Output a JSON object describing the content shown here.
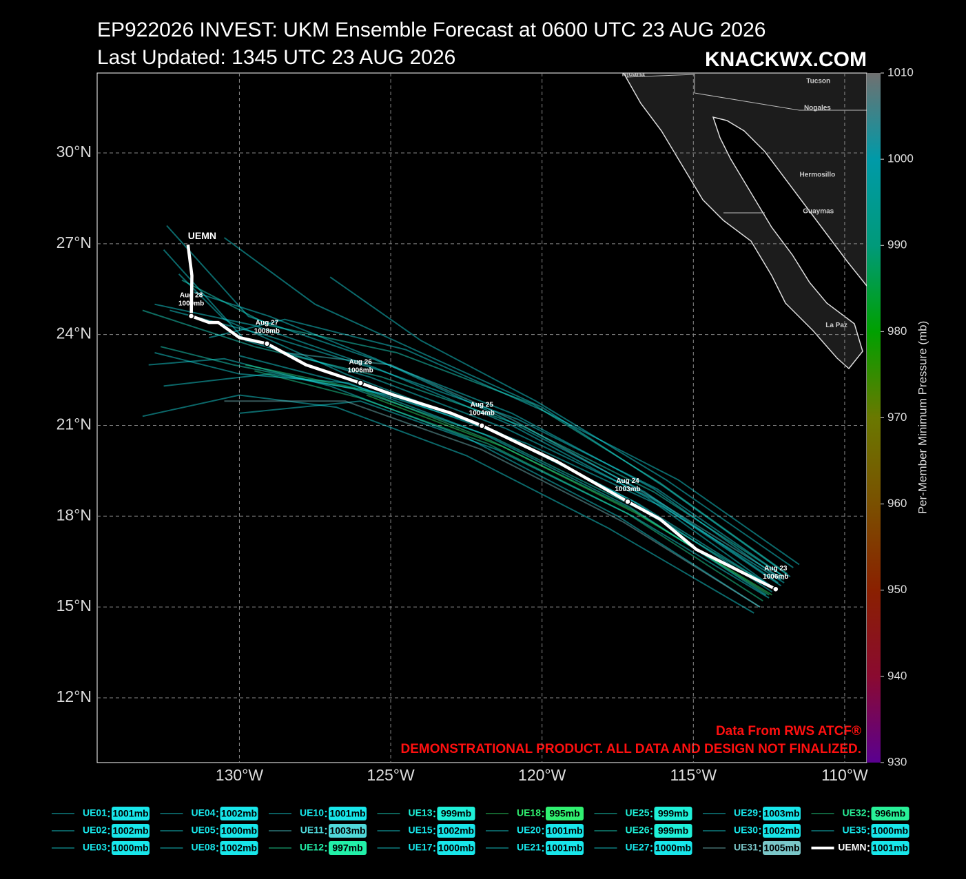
{
  "chart_data": {
    "type": "track-map",
    "title": "EP922026 INVEST: UKM Ensemble Forecast at 0600 UTC 23 AUG 2026",
    "subtitle": "Last Updated: 1345 UTC 23 AUG 2026",
    "brand": "KNACKWX.COM",
    "credit": "Data From RWS ATCF®",
    "disclaimer": "DEMONSTRATIONAL PRODUCT. ALL DATA AND DESIGN NOT FINALIZED.",
    "xlim": [
      -134.7,
      -109.27
    ],
    "ylim": [
      9.86,
      32.64
    ],
    "xticks": [
      {
        "value": -130,
        "label": "130°W"
      },
      {
        "value": -125,
        "label": "125°W"
      },
      {
        "value": -120,
        "label": "120°W"
      },
      {
        "value": -115,
        "label": "115°W"
      },
      {
        "value": -110,
        "label": "110°W"
      }
    ],
    "yticks": [
      {
        "value": 12,
        "label": "12°N"
      },
      {
        "value": 15,
        "label": "15°N"
      },
      {
        "value": 18,
        "label": "18°N"
      },
      {
        "value": 21,
        "label": "21°N"
      },
      {
        "value": 24,
        "label": "24°N"
      },
      {
        "value": 27,
        "label": "27°N"
      },
      {
        "value": 30,
        "label": "30°N"
      }
    ],
    "grid": true,
    "colorbar": {
      "label": "Per-Member Minimum Pressure (mb)",
      "lim": [
        930,
        1010
      ],
      "ticks": [
        930,
        940,
        950,
        960,
        970,
        980,
        990,
        1000,
        1010
      ],
      "cmap": [
        "#5a0090",
        "#8a0a30",
        "#8a2000",
        "#7a5000",
        "#6a7800",
        "#00a000",
        "#009a7a",
        "#009aa8",
        "#707070"
      ]
    },
    "cities": [
      {
        "name": "Tijuana",
        "lon": -117.0,
        "lat": 32.6
      },
      {
        "name": "Tucson",
        "lon": -110.87,
        "lat": 32.37
      },
      {
        "name": "Nogales",
        "lon": -110.9,
        "lat": 31.48
      },
      {
        "name": "Hermosillo",
        "lon": -110.9,
        "lat": 29.27
      },
      {
        "name": "Guaymas",
        "lon": -110.87,
        "lat": 28.07
      },
      {
        "name": "La Paz",
        "lon": -110.27,
        "lat": 24.3
      }
    ],
    "mean_track": {
      "name": "UEMN",
      "color": "#ffffff",
      "min_pressure": 1001,
      "min_pressure_label": "1001mb",
      "lon": [
        -112.28,
        -114.9,
        -116.1,
        -117.17,
        -119.5,
        -121.99,
        -123.0,
        -124.9,
        -126.0,
        -127.8,
        -129.09,
        -130.0,
        -130.7,
        -131.0,
        -131.59,
        -131.57,
        -131.7
      ],
      "lat": [
        15.59,
        16.9,
        17.9,
        18.48,
        19.8,
        20.99,
        21.4,
        22.0,
        22.4,
        23.0,
        23.7,
        23.9,
        24.4,
        24.4,
        24.61,
        25.95,
        26.97
      ],
      "markers": {
        "lon": [
          -112.28,
          -117.17,
          -121.99,
          -126.0,
          -129.09,
          -131.59
        ],
        "lat": [
          15.59,
          18.48,
          20.99,
          22.4,
          23.7,
          24.61
        ],
        "dates": [
          "Aug 23",
          "Aug 24",
          "Aug 25",
          "Aug 26",
          "Aug 27",
          "Aug 28"
        ],
        "pressures": [
          1006,
          1003,
          1004,
          1006,
          1008,
          1009
        ],
        "pressure_labels": [
          "1006mb",
          "1003mb",
          "1004mb",
          "1006mb",
          "1008mb",
          "1009mb"
        ]
      }
    },
    "series": [
      {
        "name": "UE01",
        "min_pressure": 1001,
        "min_pressure_label": "1001mb",
        "color": "#18e6ea",
        "lon": [
          -112.3,
          -116.5,
          -121.0,
          -125.5,
          -129.5,
          -132.8
        ],
        "lat": [
          15.6,
          18.6,
          21.0,
          22.9,
          24.3,
          25.0
        ]
      },
      {
        "name": "UE02",
        "min_pressure": 1002,
        "min_pressure_label": "1002mb",
        "color": "#18e6ea",
        "lon": [
          -112.0,
          -116.0,
          -120.5,
          -125.0,
          -129.0,
          -132.5
        ],
        "lat": [
          15.8,
          18.3,
          20.4,
          22.0,
          22.7,
          22.3
        ]
      },
      {
        "name": "UE03",
        "min_pressure": 1000,
        "min_pressure_label": "1000mb",
        "color": "#18e6ea",
        "lon": [
          -112.5,
          -117.0,
          -121.5,
          -126.0,
          -130.0
        ],
        "lat": [
          15.3,
          18.0,
          20.2,
          21.8,
          21.4
        ]
      },
      {
        "name": "UE04",
        "min_pressure": 1002,
        "min_pressure_label": "1002mb",
        "color": "#18e6ea",
        "lon": [
          -111.8,
          -116.0,
          -120.0,
          -124.0,
          -127.5,
          -130.5
        ],
        "lat": [
          16.0,
          19.0,
          21.6,
          23.4,
          25.0,
          27.2
        ]
      },
      {
        "name": "UE05",
        "min_pressure": 1000,
        "min_pressure_label": "1000mb",
        "color": "#18e6ea",
        "lon": [
          -112.8,
          -117.5,
          -122.5,
          -127.0,
          -130.5,
          -133.0
        ],
        "lat": [
          15.0,
          18.0,
          20.6,
          22.3,
          23.2,
          23.0
        ]
      },
      {
        "name": "UE08",
        "min_pressure": 1002,
        "min_pressure_label": "1002mb",
        "color": "#18e6ea",
        "lon": [
          -112.3,
          -116.8,
          -121.5,
          -126.5,
          -130.5,
          -132.0
        ],
        "lat": [
          15.6,
          18.4,
          20.8,
          22.7,
          24.5,
          26.0
        ]
      },
      {
        "name": "UE10",
        "min_pressure": 1001,
        "min_pressure_label": "1001mb",
        "color": "#18e6ea",
        "lon": [
          -111.5,
          -115.5,
          -120.0,
          -124.5,
          -128.5,
          -131.0
        ],
        "lat": [
          16.4,
          19.2,
          21.5,
          23.5,
          24.5,
          23.9
        ]
      },
      {
        "name": "UE11",
        "min_pressure": 1003,
        "min_pressure_label": "1003mb",
        "color": "#50d8da",
        "lon": [
          -112.0,
          -116.5,
          -121.0,
          -125.0,
          -128.5
        ],
        "lat": [
          15.9,
          18.7,
          21.2,
          23.0,
          23.4
        ]
      },
      {
        "name": "UE12",
        "min_pressure": 997,
        "min_pressure_label": "997mb",
        "color": "#22f0a8",
        "lon": [
          -112.7,
          -117.2,
          -121.8,
          -126.0,
          -129.5
        ],
        "lat": [
          15.2,
          18.1,
          20.4,
          21.9,
          22.8
        ]
      },
      {
        "name": "UE13",
        "min_pressure": 999,
        "min_pressure_label": "999mb",
        "color": "#1ef0d8",
        "lon": [
          -112.0,
          -116.3,
          -120.7,
          -125.3,
          -129.5,
          -133.2
        ],
        "lat": [
          16.0,
          18.8,
          21.0,
          22.6,
          23.6,
          24.8
        ]
      },
      {
        "name": "UE15",
        "min_pressure": 1002,
        "min_pressure_label": "1002mb",
        "color": "#18e6ea",
        "lon": [
          -112.4,
          -117.0,
          -122.0,
          -126.5,
          -130.0
        ],
        "lat": [
          15.5,
          18.5,
          21.0,
          22.4,
          23.3
        ]
      },
      {
        "name": "UE17",
        "min_pressure": 1000,
        "min_pressure_label": "1000mb",
        "color": "#18e6ea",
        "lon": [
          -113.0,
          -117.8,
          -122.5,
          -126.8,
          -130.0,
          -133.2
        ],
        "lat": [
          14.8,
          17.6,
          20.0,
          21.6,
          22.0,
          21.3
        ]
      },
      {
        "name": "UE18",
        "min_pressure": 995,
        "min_pressure_label": "995mb",
        "color": "#30f070",
        "lon": [
          -112.4,
          -116.9,
          -121.3,
          -125.8
        ],
        "lat": [
          15.4,
          18.1,
          20.3,
          22.0
        ]
      },
      {
        "name": "UE20",
        "min_pressure": 1001,
        "min_pressure_label": "1001mb",
        "color": "#18e6ea",
        "lon": [
          -112.1,
          -116.4,
          -121.2,
          -125.7,
          -129.8,
          -132.5
        ],
        "lat": [
          15.7,
          18.6,
          20.9,
          22.6,
          23.8,
          26.8
        ]
      },
      {
        "name": "UE21",
        "min_pressure": 1001,
        "min_pressure_label": "1001mb",
        "color": "#18e6ea",
        "lon": [
          -112.2,
          -116.6,
          -121.4,
          -125.5,
          -129.0,
          -131.5
        ],
        "lat": [
          15.8,
          18.8,
          21.3,
          23.2,
          24.6,
          25.4
        ]
      },
      {
        "name": "UE25",
        "min_pressure": 999,
        "min_pressure_label": "999mb",
        "color": "#1ef0d8",
        "lon": [
          -112.3,
          -116.7,
          -121.6,
          -126.2,
          -130.2,
          -132.6
        ],
        "lat": [
          15.6,
          18.2,
          20.6,
          22.2,
          23.0,
          23.6
        ]
      },
      {
        "name": "UE26",
        "min_pressure": 999,
        "min_pressure_label": "999mb",
        "color": "#1ef0d8",
        "lon": [
          -111.9,
          -116.1,
          -120.3,
          -124.8,
          -129.0,
          -131.9
        ],
        "lat": [
          16.1,
          19.1,
          21.7,
          23.4,
          24.3,
          25.8
        ]
      },
      {
        "name": "UE27",
        "min_pressure": 1000,
        "min_pressure_label": "1000mb",
        "color": "#18e6ea",
        "lon": [
          -112.6,
          -117.1,
          -121.9,
          -126.4,
          -130.0,
          -132.8
        ],
        "lat": [
          15.4,
          18.3,
          20.7,
          22.4,
          22.7,
          23.4
        ]
      },
      {
        "name": "UE29",
        "min_pressure": 1003,
        "min_pressure_label": "1003mb",
        "color": "#18e6ea",
        "lon": [
          -111.7,
          -115.9,
          -120.2,
          -124.0,
          -127.0
        ],
        "lat": [
          16.3,
          19.2,
          21.8,
          23.8,
          25.9
        ]
      },
      {
        "name": "UE30",
        "min_pressure": 1002,
        "min_pressure_label": "1002mb",
        "color": "#18e6ea",
        "lon": [
          -112.0,
          -116.2,
          -120.8,
          -125.3,
          -129.2,
          -132.3
        ],
        "lat": [
          16.0,
          18.9,
          21.2,
          22.8,
          24.0,
          24.8
        ]
      },
      {
        "name": "UE31",
        "min_pressure": 1005,
        "min_pressure_label": "1005mb",
        "color": "#7ac6c8",
        "lon": [
          -112.8,
          -117.3,
          -122.0,
          -126.5,
          -130.5
        ],
        "lat": [
          15.0,
          17.8,
          20.2,
          21.8,
          21.8
        ]
      },
      {
        "name": "UE32",
        "min_pressure": 996,
        "min_pressure_label": "996mb",
        "color": "#28f098",
        "lon": [
          -112.5,
          -117.0,
          -121.7,
          -126.0,
          -129.8
        ],
        "lat": [
          15.4,
          18.2,
          20.5,
          22.2,
          23.0
        ]
      },
      {
        "name": "UE35",
        "min_pressure": 1000,
        "min_pressure_label": "1000mb",
        "color": "#18e6ea",
        "lon": [
          -112.1,
          -116.3,
          -121.0,
          -125.6,
          -129.7,
          -132.4
        ],
        "lat": [
          15.9,
          18.9,
          21.4,
          23.2,
          24.6,
          27.6
        ]
      }
    ]
  }
}
